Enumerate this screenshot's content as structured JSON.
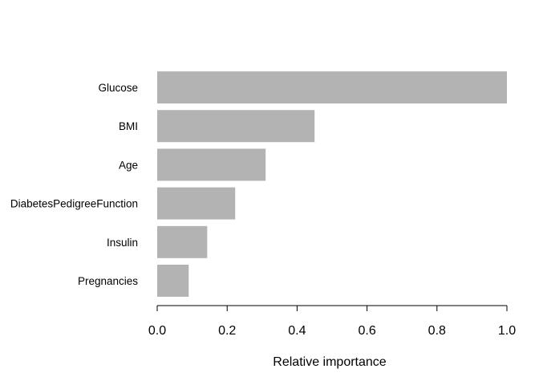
{
  "chart_data": {
    "type": "bar",
    "orientation": "horizontal",
    "title": "",
    "xlabel": "Relative importance",
    "ylabel": "",
    "categories": [
      "Glucose",
      "BMI",
      "Age",
      "DiabetesPedigreeFunction",
      "Insulin",
      "Pregnancies"
    ],
    "values": [
      1.0,
      0.45,
      0.31,
      0.223,
      0.143,
      0.09
    ],
    "xlim": [
      0,
      1
    ],
    "xticks": [
      "0.0",
      "0.2",
      "0.4",
      "0.6",
      "0.8",
      "1.0"
    ],
    "grid": false,
    "legend": "none",
    "bar_color": "#b3b3b3"
  }
}
